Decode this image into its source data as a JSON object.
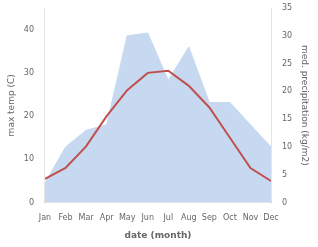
{
  "chart_data": {
    "type": "line",
    "categories": [
      "Jan",
      "Feb",
      "Mar",
      "Apr",
      "May",
      "Jun",
      "Jul",
      "Aug",
      "Sep",
      "Oct",
      "Nov",
      "Dec"
    ],
    "series": [
      {
        "type": "area",
        "color": "#c6d9f1",
        "axis": "y2",
        "values": [
          3.5,
          10.0,
          13.0,
          14.0,
          30.0,
          30.5,
          22.0,
          28.0,
          18.0,
          18.0,
          14.0,
          10.0
        ]
      },
      {
        "type": "line",
        "color": "#c0504d",
        "values": [
          5.5,
          8.0,
          13.0,
          20.0,
          26.0,
          30.0,
          30.5,
          27.0,
          22.0,
          15.0,
          8.0,
          5.0
        ]
      }
    ],
    "xlabel": "date (month)",
    "ylabel": "max temp (C)",
    "y2label": "med. precipitation (kg/m2)",
    "ylim": [
      0,
      45
    ],
    "yticks": [
      0,
      10,
      20,
      30,
      40
    ],
    "y2lim": [
      0,
      35
    ],
    "y2ticks": [
      0,
      5,
      10,
      15,
      20,
      25,
      30,
      35
    ],
    "grid": false
  }
}
